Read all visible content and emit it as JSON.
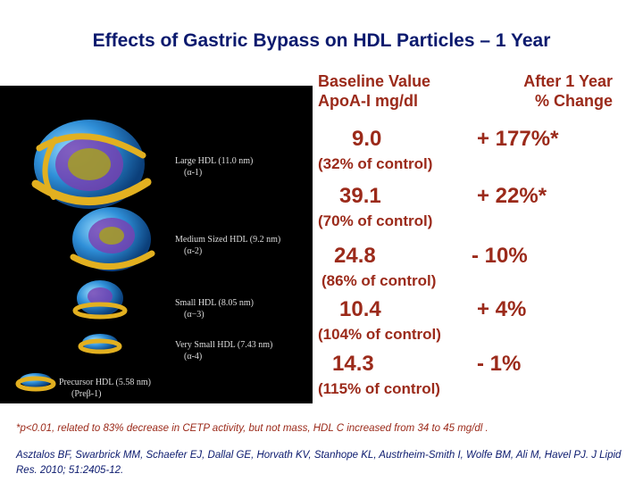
{
  "slide": {
    "title": "Effects of Gastric Bypass on HDL Particles – 1 Year",
    "headers": {
      "baseline_line1": "Baseline Value",
      "baseline_line2": "ApoA-I mg/dl",
      "after_line1": "After 1 Year",
      "after_line2": "% Change"
    },
    "rows": [
      {
        "value": "9.0",
        "pct_control": "(32% of control)",
        "change": "+ 177%*"
      },
      {
        "value": "39.1",
        "pct_control": "(70% of control)",
        "change": "+ 22%*"
      },
      {
        "value": "24.8",
        "pct_control": "(86% of control)",
        "change": "- 10%"
      },
      {
        "value": "10.4",
        "pct_control": "(104%  of control)",
        "change": "+ 4%"
      },
      {
        "value": "14.3",
        "pct_control": "(115% of control)",
        "change": "- 1%"
      }
    ],
    "particles": [
      {
        "name": "Large HDL (11.0 nm)",
        "sub": "(α-1)"
      },
      {
        "name": "Medium Sized HDL  (9.2 nm)",
        "sub": "(α-2)"
      },
      {
        "name": "Small HDL  (8.05 nm)",
        "sub": "(α−3)"
      },
      {
        "name": "Very Small HDL  (7.43 nm)",
        "sub": "(α-4)"
      },
      {
        "name": "Precursor HDL  (5.58 nm)",
        "sub": "(Preβ-1)"
      }
    ],
    "footnote": "*p<0.01, related to 83% decrease in CETP activity, but not mass, HDL C increased from 34 to 45 mg/dl .",
    "reference": "Asztalos BF, Swarbrick MM, Schaefer  EJ, Dallal GE, Horvath KV, Stanhope KL, Austrheim-Smith I, Wolfe BM, Ali M, Havel PJ.  J Lipid Res. 2010; 51:2405-12."
  }
}
